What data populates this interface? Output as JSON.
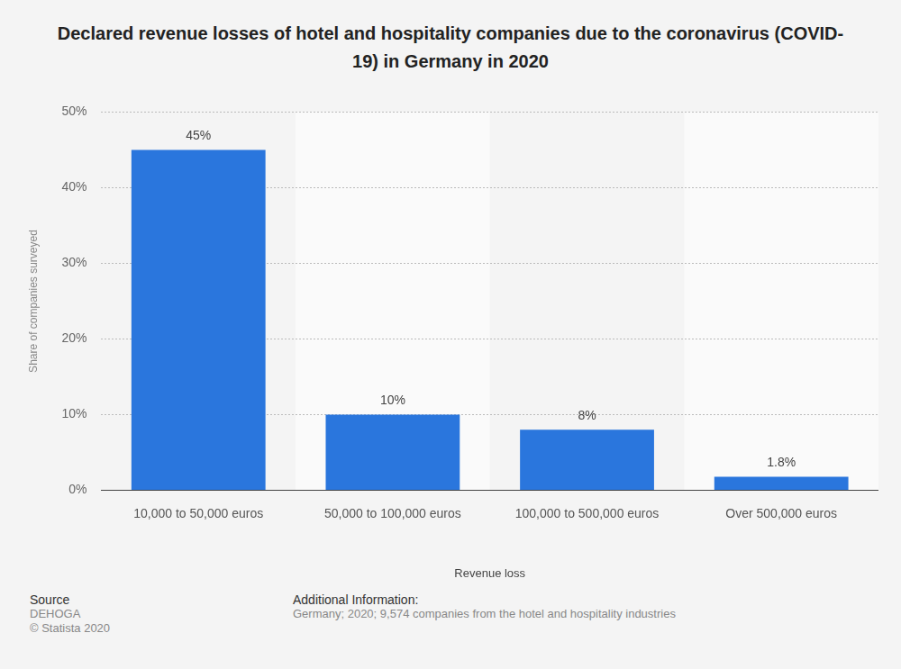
{
  "chart_data": {
    "type": "bar",
    "title": "Declared revenue losses of hotel and hospitality companies due to the coronavirus (COVID-19) in Germany in 2020",
    "x_label": "Revenue loss",
    "y_label": "Share of companies surveyed",
    "categories": [
      "10,000 to 50,000 euros",
      "50,000 to 100,000 euros",
      "100,000 to 500,000 euros",
      "Over 500,000 euros"
    ],
    "values": [
      45,
      10,
      8,
      1.8
    ],
    "value_labels": [
      "45%",
      "10%",
      "8%",
      "1.8%"
    ],
    "color": "#2a76dd",
    "ylim": [
      0,
      50
    ],
    "yticks": [
      {
        "value": 0,
        "label": "0%"
      },
      {
        "value": 10,
        "label": "10%"
      },
      {
        "value": 20,
        "label": "20%"
      },
      {
        "value": 30,
        "label": "30%"
      },
      {
        "value": 40,
        "label": "40%"
      },
      {
        "value": 50,
        "label": "50%"
      }
    ],
    "grid": true,
    "data_labels": true
  },
  "footer": {
    "source_heading": "Source",
    "source": [
      "DEHOGA",
      "© Statista 2020"
    ],
    "info_heading": "Additional Information:",
    "info": "Germany; 2020; 9,574 companies from the hotel and hospitality industries"
  }
}
